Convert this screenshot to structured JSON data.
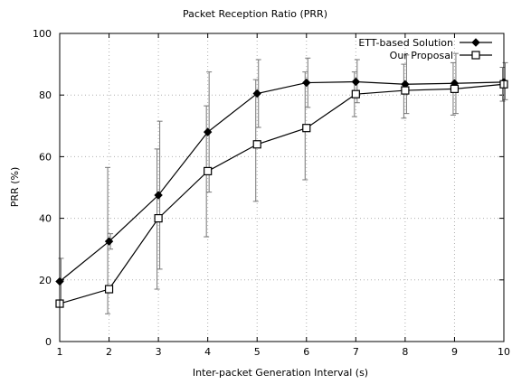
{
  "chart_data": {
    "type": "line",
    "title": "Packet Reception Ratio (PRR)",
    "xlabel": "Inter-packet Generation Interval (s)",
    "ylabel": "PRR (%)",
    "xlim": [
      1,
      10
    ],
    "ylim": [
      0,
      100
    ],
    "x_ticks": [
      1,
      2,
      3,
      4,
      5,
      6,
      7,
      8,
      9,
      10
    ],
    "y_ticks": [
      0,
      20,
      40,
      60,
      80,
      100
    ],
    "grid": true,
    "grid_style": "dotted",
    "legend_position": "top-right",
    "x": [
      1,
      2,
      3,
      4,
      5,
      6,
      7,
      8,
      9,
      10
    ],
    "series": [
      {
        "name": "ETT-based Solution",
        "marker": "filled-diamond",
        "values": [
          19.5,
          32.5,
          47.5,
          68,
          80.5,
          84,
          84.3,
          83.5,
          83.8,
          84.2
        ],
        "error_low": [
          12,
          30,
          23.5,
          48.5,
          69.5,
          76,
          77.5,
          74,
          74,
          78.5
        ],
        "error_high": [
          27,
          35,
          71.5,
          87.5,
          91.5,
          92,
          91.5,
          93,
          93.5,
          90.5
        ],
        "color": "#000000"
      },
      {
        "name": "Our Proposal",
        "marker": "open-square",
        "values": [
          12.3,
          17,
          40,
          55.3,
          64,
          69.3,
          80.3,
          81.5,
          82,
          83.5
        ],
        "error_low": [
          0,
          9,
          17,
          34,
          45.5,
          52.5,
          73,
          72.5,
          73.5,
          78
        ],
        "error_high": [
          0,
          56.5,
          62.5,
          76.5,
          85,
          87.5,
          87.5,
          90,
          90.5,
          89
        ],
        "color": "#000000"
      }
    ]
  }
}
